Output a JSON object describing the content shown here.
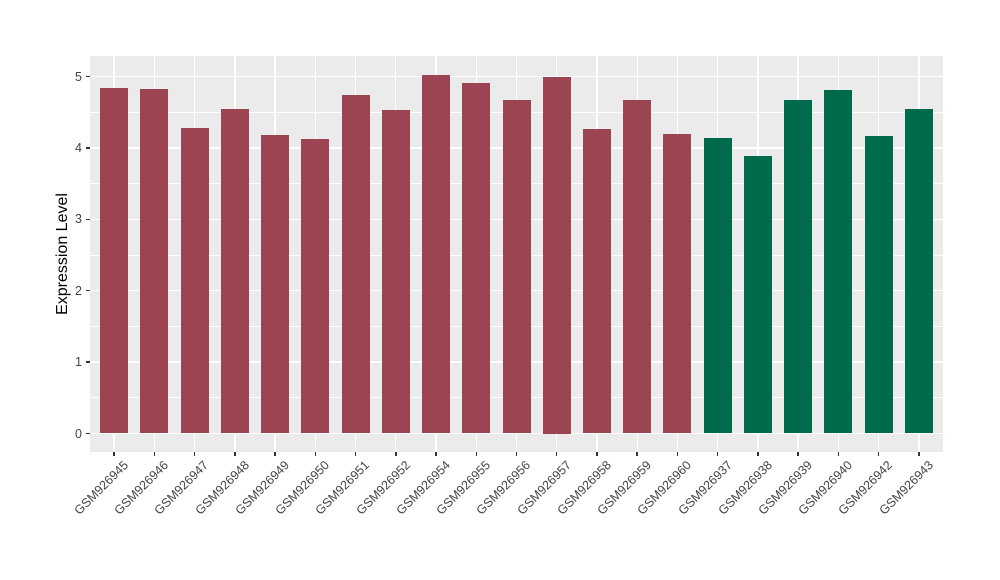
{
  "chart_data": {
    "type": "bar",
    "title": "",
    "xlabel": "",
    "ylabel": "Expression Level",
    "ylim": [
      -0.26,
      5.29
    ],
    "y_major_ticks": [
      0,
      1,
      2,
      3,
      4,
      5
    ],
    "y_minor_ticks": [
      0.5,
      1.5,
      2.5,
      3.5,
      4.5
    ],
    "grid": "on",
    "legend": "none",
    "panel_bg": "#EBEBEB",
    "grid_color": "#FFFFFF",
    "tick_color": "#333333",
    "axis_text_color": "#444444",
    "group_colors": {
      "group1": "#9C4452",
      "group2": "#006B4C"
    },
    "bars": [
      {
        "label": "GSM926945",
        "value": 4.84,
        "group": "group1"
      },
      {
        "label": "GSM926946",
        "value": 4.83,
        "group": "group1"
      },
      {
        "label": "GSM926947",
        "value": 4.28,
        "group": "group1"
      },
      {
        "label": "GSM926948",
        "value": 4.55,
        "group": "group1"
      },
      {
        "label": "GSM926949",
        "value": 4.18,
        "group": "group1"
      },
      {
        "label": "GSM926950",
        "value": 4.13,
        "group": "group1"
      },
      {
        "label": "GSM926951",
        "value": 4.74,
        "group": "group1"
      },
      {
        "label": "GSM926952",
        "value": 4.53,
        "group": "group1"
      },
      {
        "label": "GSM926954",
        "value": 5.02,
        "group": "group1"
      },
      {
        "label": "GSM926955",
        "value": 4.91,
        "group": "group1"
      },
      {
        "label": "GSM926956",
        "value": 4.67,
        "group": "group1"
      },
      {
        "label": "GSM926957",
        "value": 5.0,
        "group": "group1"
      },
      {
        "label": "GSM926958",
        "value": 4.27,
        "group": "group1"
      },
      {
        "label": "GSM926959",
        "value": 4.67,
        "group": "group1"
      },
      {
        "label": "GSM926960",
        "value": 4.2,
        "group": "group1"
      },
      {
        "label": "GSM926937",
        "value": 4.14,
        "group": "group2"
      },
      {
        "label": "GSM926938",
        "value": 3.89,
        "group": "group2"
      },
      {
        "label": "GSM926939",
        "value": 4.67,
        "group": "group2"
      },
      {
        "label": "GSM926940",
        "value": 4.81,
        "group": "group2"
      },
      {
        "label": "GSM926942",
        "value": 4.17,
        "group": "group2"
      },
      {
        "label": "GSM926943",
        "value": 4.55,
        "group": "group2"
      }
    ]
  }
}
